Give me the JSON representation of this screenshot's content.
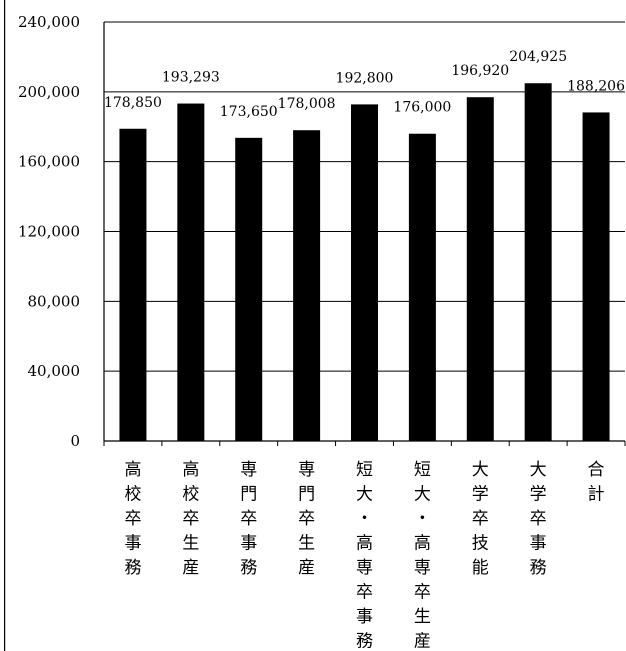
{
  "chart_data": {
    "type": "bar",
    "categories": [
      "高校卒事務",
      "高校卒生産",
      "専門卒事務",
      "専門卒生産",
      "短大・高専卒事務",
      "短大・高専卒生産",
      "大学卒技能",
      "大学卒事務",
      "合計"
    ],
    "values": [
      178850,
      193293,
      173650,
      178008,
      192800,
      176000,
      196920,
      204925,
      188206
    ],
    "value_labels": [
      "178,850",
      "193,293",
      "173,650",
      "178,008",
      "192,800",
      "176,000",
      "196,920",
      "204,925",
      "188,206"
    ],
    "ylim": [
      0,
      240000
    ],
    "yticks": [
      0,
      40000,
      80000,
      120000,
      160000,
      200000,
      240000
    ],
    "ytick_labels": [
      "0",
      "40,000",
      "80,000",
      "120,000",
      "160,000",
      "200,000",
      "240,000"
    ],
    "grid": true,
    "bar_color": "#000000",
    "title": "",
    "xlabel": "",
    "ylabel": ""
  }
}
